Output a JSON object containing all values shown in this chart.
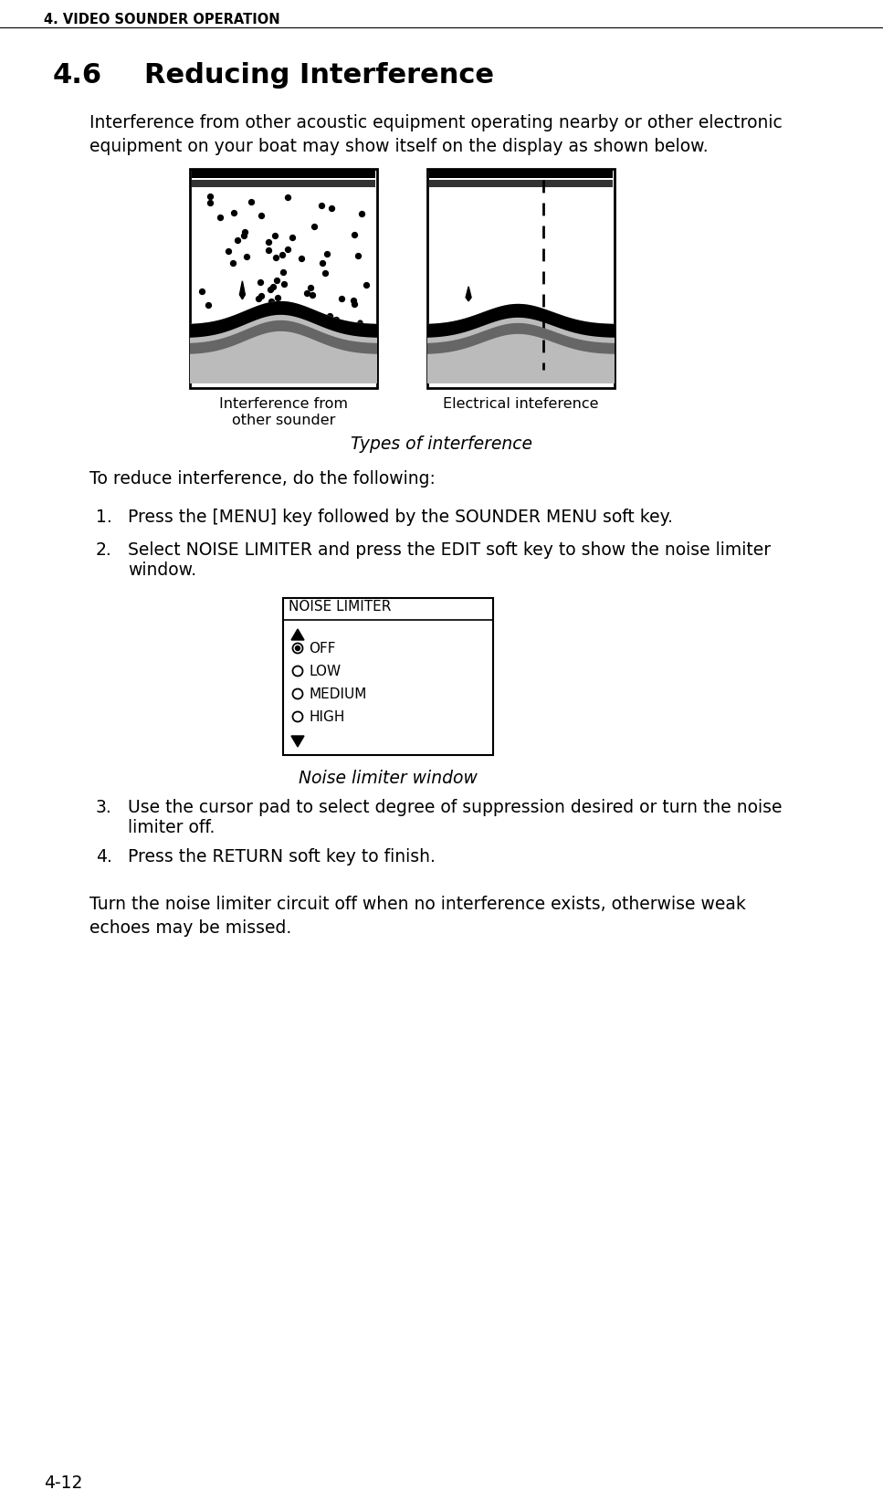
{
  "page_header": "4. VIDEO SOUNDER OPERATION",
  "section_number": "4.6",
  "section_title": "Reducing Interference",
  "intro_text": "Interference from other acoustic equipment operating nearby or other electronic\nequipment on your boat may show itself on the display as shown below.",
  "caption1_line1": "Interference from",
  "caption1_line2": "other sounder",
  "caption2": "Electrical inteference",
  "figure_caption": "Types of interference",
  "reduce_text": "To reduce interference, do the following:",
  "step1": "Press the [MENU] key followed by the SOUNDER MENU soft key.",
  "step2_line1": "Select NOISE LIMITER and press the EDIT soft key to show the noise limiter",
  "step2_line2": "window.",
  "noise_limiter_title": "NOISE LIMITER",
  "noise_limiter_items": [
    "OFF",
    "LOW",
    "MEDIUM",
    "HIGH"
  ],
  "noise_limiter_caption": "Noise limiter window",
  "step3_line1": "Use the cursor pad to select degree of suppression desired or turn the noise",
  "step3_line2": "limiter off.",
  "step4": "Press the RETURN soft key to finish.",
  "warning_text": "Turn the noise limiter circuit off when no interference exists, otherwise weak\nechoes may be missed.",
  "page_number": "4-12",
  "bg_color": "#ffffff",
  "text_color": "#000000"
}
